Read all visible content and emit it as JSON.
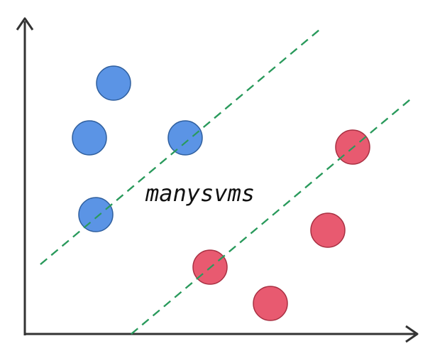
{
  "logo": {
    "text": "manysvms"
  },
  "colors": {
    "axis": "#333333",
    "class_a_fill": "#5b94e5",
    "class_a_stroke": "#2f5f9e",
    "class_b_fill": "#e85a70",
    "class_b_stroke": "#a83042",
    "margin_line": "#2a9a5c"
  }
}
